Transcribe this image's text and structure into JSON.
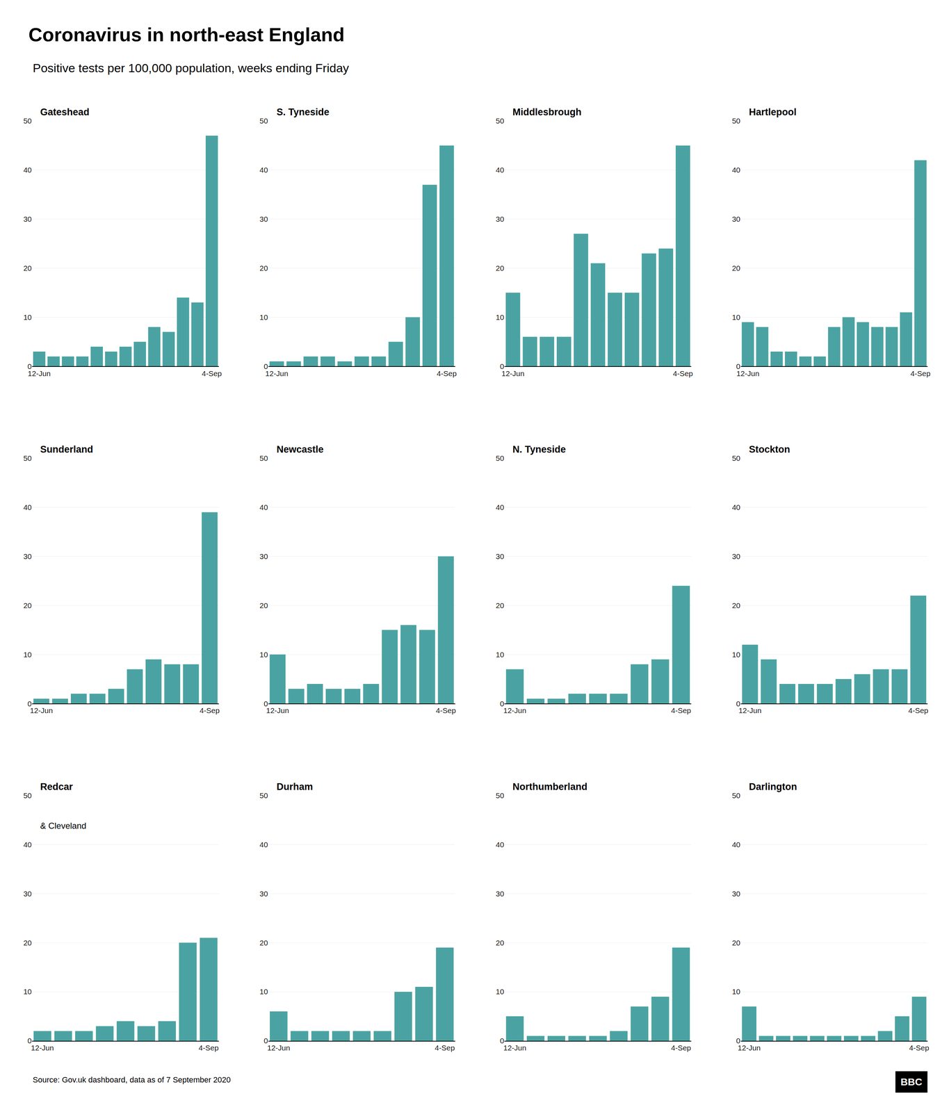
{
  "title": "Coronavirus in north-east England",
  "subtitle": "Positive tests per 100,000 population, weeks ending Friday",
  "source": "Source: Gov.uk dashboard, data as of 7 September 2020",
  "annotations": [
    "BBC"
  ],
  "chart_data": [
    {
      "type": "bar",
      "title": "Gateshead",
      "categories": [
        "12-Jun",
        null,
        null,
        null,
        null,
        null,
        null,
        null,
        null,
        null,
        null,
        null,
        "4-Sep"
      ],
      "values": [
        3,
        2,
        2,
        2,
        4,
        3,
        4,
        5,
        8,
        7,
        14,
        13,
        47
      ],
      "color": "#4aa3a2",
      "ylim": [
        0,
        50
      ],
      "yticks": [
        0,
        10,
        20,
        30,
        40,
        50
      ],
      "grid": true
    },
    {
      "type": "bar",
      "title": "S. Tyneside",
      "categories": [
        "12-Jun",
        null,
        null,
        null,
        null,
        null,
        null,
        null,
        null,
        null,
        "4-Sep"
      ],
      "values": [
        1,
        1,
        2,
        2,
        1,
        2,
        2,
        5,
        10,
        37,
        45
      ],
      "color": "#4aa3a2",
      "ylim": [
        0,
        50
      ],
      "yticks": [
        0,
        10,
        20,
        30,
        40,
        50
      ],
      "grid": true
    },
    {
      "type": "bar",
      "title": "Middlesbrough",
      "categories": [
        "12-Jun",
        null,
        null,
        null,
        null,
        null,
        null,
        null,
        null,
        null,
        "4-Sep"
      ],
      "values": [
        15,
        6,
        6,
        6,
        27,
        21,
        15,
        15,
        23,
        24,
        45
      ],
      "color": "#4aa3a2",
      "ylim": [
        0,
        50
      ],
      "yticks": [
        0,
        10,
        20,
        30,
        40,
        50
      ],
      "grid": true
    },
    {
      "type": "bar",
      "title": "Hartlepool",
      "categories": [
        "12-Jun",
        null,
        null,
        null,
        null,
        null,
        null,
        null,
        null,
        null,
        null,
        null,
        "4-Sep"
      ],
      "values": [
        9,
        8,
        3,
        3,
        2,
        2,
        8,
        10,
        9,
        8,
        8,
        11,
        42
      ],
      "color": "#4aa3a2",
      "ylim": [
        0,
        50
      ],
      "yticks": [
        0,
        10,
        20,
        30,
        40,
        50
      ],
      "grid": true
    },
    {
      "type": "bar",
      "title": "Sunderland",
      "categories": [
        "12-Jun",
        null,
        null,
        null,
        null,
        null,
        null,
        null,
        null,
        "4-Sep"
      ],
      "values": [
        1,
        1,
        2,
        2,
        3,
        7,
        9,
        8,
        8,
        39
      ],
      "color": "#4aa3a2",
      "ylim": [
        0,
        50
      ],
      "yticks": [
        0,
        10,
        20,
        30,
        40,
        50
      ],
      "grid": true
    },
    {
      "type": "bar",
      "title": "Newcastle",
      "categories": [
        "12-Jun",
        null,
        null,
        null,
        null,
        null,
        null,
        null,
        null,
        "4-Sep"
      ],
      "values": [
        10,
        3,
        4,
        3,
        3,
        4,
        15,
        16,
        15,
        30
      ],
      "color": "#4aa3a2",
      "ylim": [
        0,
        50
      ],
      "yticks": [
        0,
        10,
        20,
        30,
        40,
        50
      ],
      "grid": true
    },
    {
      "type": "bar",
      "title": "N. Tyneside",
      "categories": [
        "12-Jun",
        null,
        null,
        null,
        null,
        null,
        null,
        null,
        "4-Sep"
      ],
      "values": [
        7,
        1,
        1,
        2,
        2,
        2,
        8,
        9,
        24
      ],
      "color": "#4aa3a2",
      "ylim": [
        0,
        50
      ],
      "yticks": [
        0,
        10,
        20,
        30,
        40,
        50
      ],
      "grid": true
    },
    {
      "type": "bar",
      "title": "Stockton",
      "categories": [
        "12-Jun",
        null,
        null,
        null,
        null,
        null,
        null,
        null,
        null,
        "4-Sep"
      ],
      "values": [
        12,
        9,
        4,
        4,
        4,
        5,
        6,
        7,
        7,
        22
      ],
      "color": "#4aa3a2",
      "ylim": [
        0,
        50
      ],
      "yticks": [
        0,
        10,
        20,
        30,
        40,
        50
      ],
      "grid": true
    },
    {
      "type": "bar",
      "title": "Redcar",
      "subtitle": "& Cleveland",
      "categories": [
        "12-Jun",
        null,
        null,
        null,
        null,
        null,
        null,
        null,
        "4-Sep"
      ],
      "values": [
        2,
        2,
        2,
        3,
        4,
        3,
        4,
        20,
        21
      ],
      "color": "#4aa3a2",
      "ylim": [
        0,
        50
      ],
      "yticks": [
        0,
        10,
        20,
        30,
        40,
        50
      ],
      "grid": true
    },
    {
      "type": "bar",
      "title": "Durham",
      "categories": [
        "12-Jun",
        null,
        null,
        null,
        null,
        null,
        null,
        null,
        "4-Sep"
      ],
      "values": [
        6,
        2,
        2,
        2,
        2,
        2,
        10,
        11,
        19
      ],
      "color": "#4aa3a2",
      "ylim": [
        0,
        50
      ],
      "yticks": [
        0,
        10,
        20,
        30,
        40,
        50
      ],
      "grid": true
    },
    {
      "type": "bar",
      "title": "Northumberland",
      "categories": [
        "12-Jun",
        null,
        null,
        null,
        null,
        null,
        null,
        null,
        "4-Sep"
      ],
      "values": [
        5,
        1,
        1,
        1,
        1,
        2,
        7,
        9,
        19
      ],
      "color": "#4aa3a2",
      "ylim": [
        0,
        50
      ],
      "yticks": [
        0,
        10,
        20,
        30,
        40,
        50
      ],
      "grid": true
    },
    {
      "type": "bar",
      "title": "Darlington",
      "categories": [
        "12-Jun",
        null,
        null,
        null,
        null,
        null,
        null,
        null,
        null,
        null,
        "4-Sep"
      ],
      "values": [
        7,
        1,
        1,
        1,
        1,
        1,
        1,
        1,
        2,
        5,
        9
      ],
      "color": "#4aa3a2",
      "ylim": [
        0,
        50
      ],
      "yticks": [
        0,
        10,
        20,
        30,
        40,
        50
      ],
      "grid": true
    }
  ]
}
